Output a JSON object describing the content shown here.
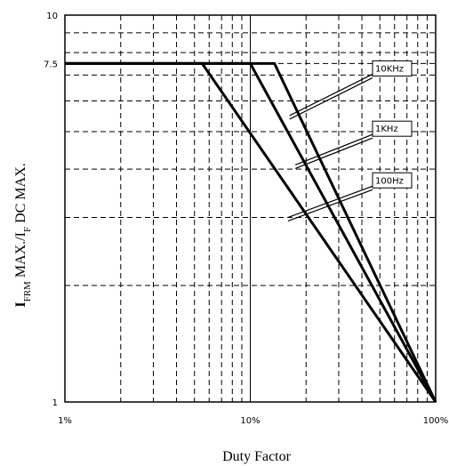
{
  "chart_data": {
    "type": "line",
    "xlabel": "Duty Factor",
    "ylabel_main": "I",
    "ylabel_sub1": "FRM",
    "ylabel_mid": " MAX./I",
    "ylabel_sub2": "F",
    "ylabel_end": " DC MAX.",
    "x_scale": "log",
    "y_scale": "log",
    "xlim": [
      1,
      100
    ],
    "ylim": [
      1,
      10
    ],
    "x_ticks": [
      {
        "value": 1,
        "label": "1%"
      },
      {
        "value": 10,
        "label": "10%"
      },
      {
        "value": 100,
        "label": "100%"
      }
    ],
    "y_ticks": [
      {
        "value": 1,
        "label": "1"
      },
      {
        "value": 7.5,
        "label": "7.5"
      },
      {
        "value": 10,
        "label": "10"
      }
    ],
    "grid": true,
    "series": [
      {
        "name": "10KHz",
        "x": [
          1,
          13.5,
          100
        ],
        "y": [
          7.5,
          7.5,
          1
        ]
      },
      {
        "name": "1KHz",
        "x": [
          1,
          10,
          100
        ],
        "y": [
          7.5,
          7.5,
          1
        ]
      },
      {
        "name": "100Hz",
        "x": [
          1,
          5.5,
          100
        ],
        "y": [
          7.5,
          7.5,
          1
        ]
      }
    ],
    "annotations": [
      {
        "text": "10KHz",
        "box_x": 11.2,
        "box_y": 7.3,
        "point_x": 16.3,
        "point_y": 5.5
      },
      {
        "text": "1KHz",
        "box_x": 11.2,
        "box_y": 5.1,
        "point_x": 17.5,
        "point_y": 4.1
      },
      {
        "text": "100Hz",
        "box_x": 11.2,
        "box_y": 3.75,
        "point_x": 16.0,
        "point_y": 3.0
      }
    ]
  }
}
